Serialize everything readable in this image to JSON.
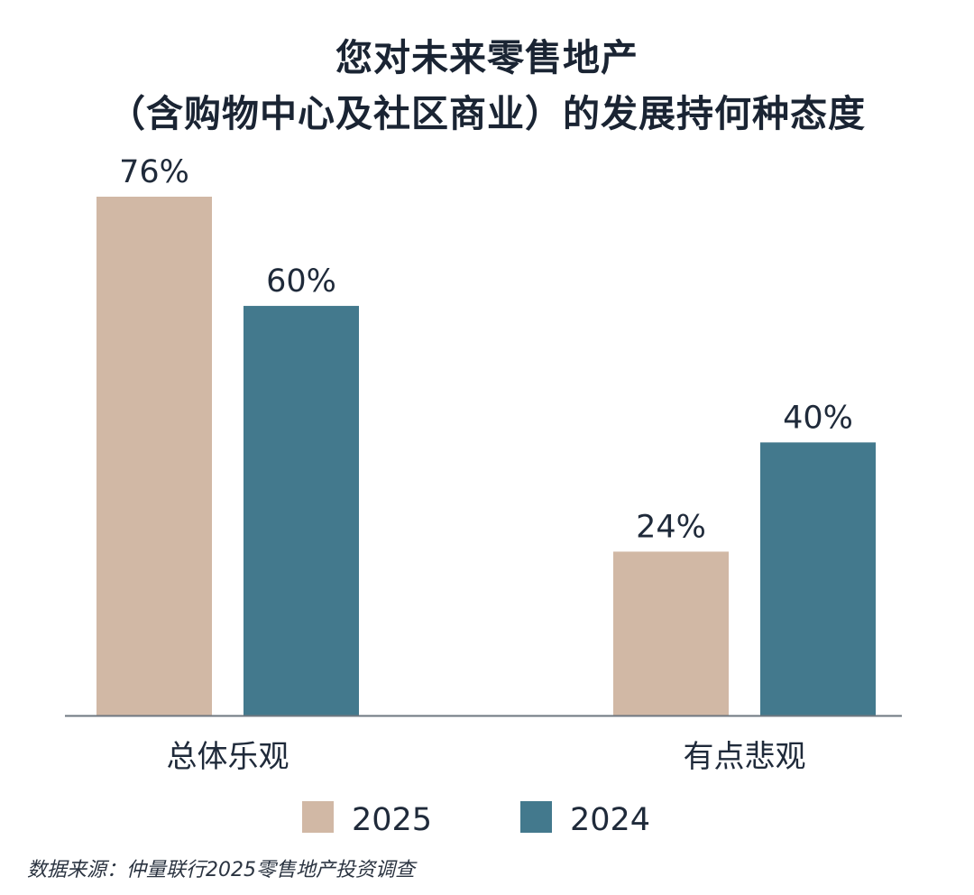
{
  "chart_data": {
    "type": "bar",
    "title": "您对未来零售地产",
    "subtitle": "（含购物中心及社区商业）的发展持何种态度",
    "categories": [
      "总体乐观",
      "有点悲观"
    ],
    "series": [
      {
        "name": "2025",
        "values": [
          76,
          24
        ],
        "labels": [
          "76%",
          "24%"
        ],
        "color": "#d1b8a5"
      },
      {
        "name": "2024",
        "values": [
          60,
          40
        ],
        "labels": [
          "60%",
          "40%"
        ],
        "color": "#43798d"
      }
    ],
    "ylim": [
      0,
      76
    ],
    "grid": false,
    "legend": "bottom-center",
    "axis_color": "#6e7780",
    "source": "数据来源：仲量联行2025零售地产投资调查"
  }
}
